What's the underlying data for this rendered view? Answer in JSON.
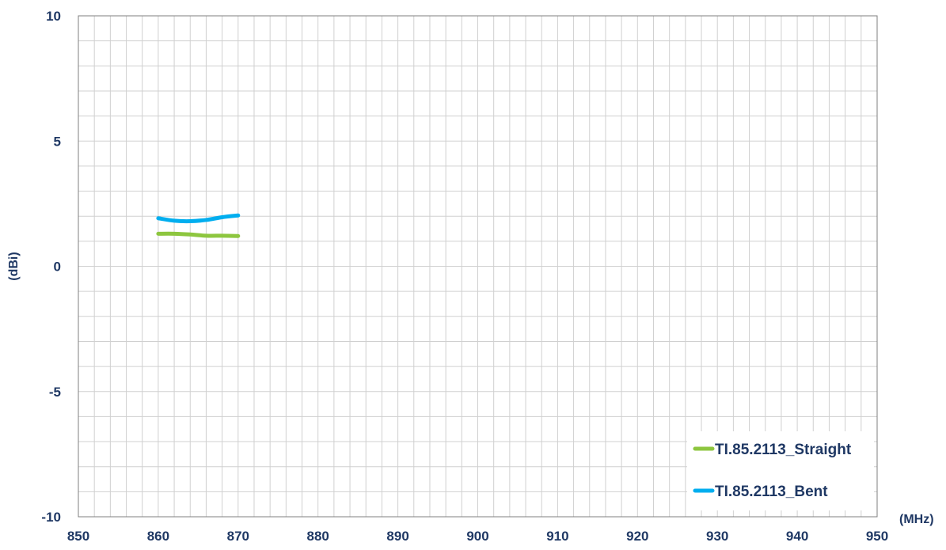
{
  "chart_data": {
    "type": "line",
    "title": "",
    "xlabel": "(MHz)",
    "ylabel": "(dBi)",
    "xlim": [
      850,
      950
    ],
    "ylim": [
      -10,
      10
    ],
    "x_ticks": [
      "850",
      "860",
      "870",
      "880",
      "890",
      "900",
      "910",
      "920",
      "930",
      "940",
      "950"
    ],
    "y_ticks": [
      "10",
      "5",
      "0",
      "-5",
      "-10"
    ],
    "grid": true,
    "legend_position": "bottom-right",
    "series": [
      {
        "name": "TI.85.2113_Straight",
        "color": "#8dc63f",
        "x": [
          860,
          862,
          864,
          866,
          868,
          870
        ],
        "y": [
          1.3,
          1.3,
          1.27,
          1.22,
          1.22,
          1.21
        ]
      },
      {
        "name": "TI.85.2113_Bent",
        "color": "#00aeef",
        "x": [
          860,
          862,
          864,
          866,
          868,
          870
        ],
        "y": [
          1.92,
          1.82,
          1.8,
          1.85,
          1.96,
          2.03
        ]
      }
    ]
  }
}
